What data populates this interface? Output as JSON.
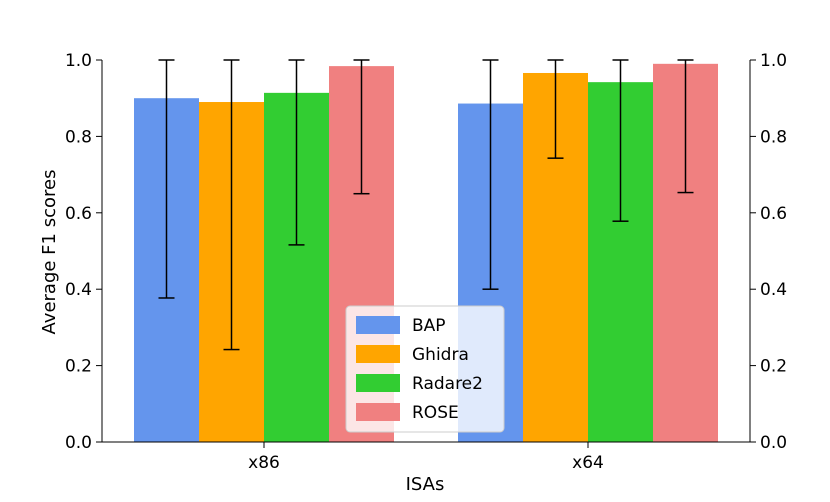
{
  "chart_data": {
    "type": "bar",
    "title": "",
    "xlabel": "ISAs",
    "ylabel": "Average F1 scores",
    "categories": [
      "x86",
      "x64"
    ],
    "ylim": [
      0,
      1.0
    ],
    "yticks": [
      0.0,
      0.2,
      0.4,
      0.6,
      0.8,
      1.0
    ],
    "ytick_labels": [
      "0.0",
      "0.2",
      "0.4",
      "0.6",
      "0.8",
      "1.0"
    ],
    "right_axis_ticks": true,
    "legend_position": "lower-center",
    "series": [
      {
        "name": "BAP",
        "color": "#6495ED",
        "values": [
          0.9,
          0.886
        ],
        "err_low": [
          0.377,
          0.4
        ],
        "err_high": [
          1.0,
          1.0
        ]
      },
      {
        "name": "Ghidra",
        "color": "#FFA500",
        "values": [
          0.89,
          0.966
        ],
        "err_low": [
          0.242,
          0.743
        ],
        "err_high": [
          1.0,
          1.0
        ]
      },
      {
        "name": "Radare2",
        "color": "#32CD32",
        "values": [
          0.914,
          0.942
        ],
        "err_low": [
          0.516,
          0.578
        ],
        "err_high": [
          1.0,
          1.0
        ]
      },
      {
        "name": "ROSE",
        "color": "#F08080",
        "values": [
          0.984,
          0.99
        ],
        "err_low": [
          0.65,
          0.653
        ],
        "err_high": [
          1.0,
          1.0
        ]
      }
    ]
  }
}
